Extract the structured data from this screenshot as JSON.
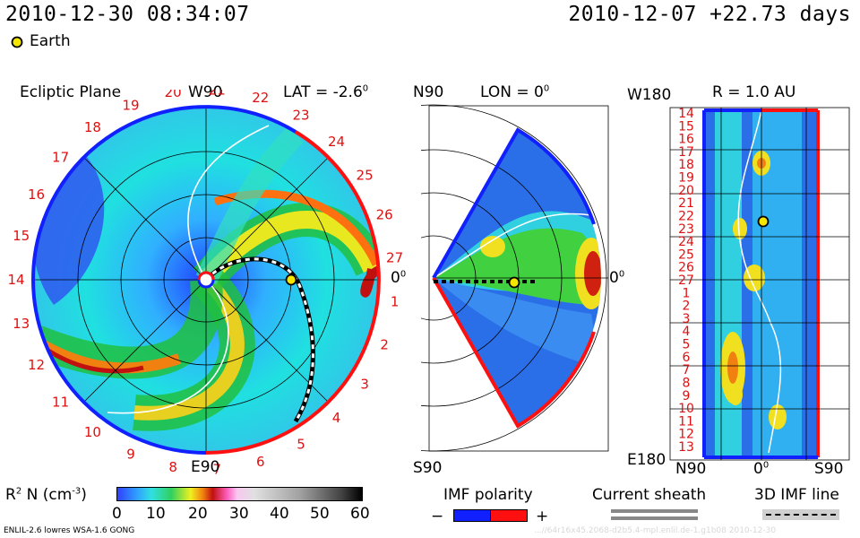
{
  "header": {
    "datetime": "2010-12-30 08:34:07",
    "reference": "2010-12-07 +22.73 days",
    "earth_legend": "Earth"
  },
  "ecliptic": {
    "title": "Ecliptic Plane",
    "top_label": "W90",
    "bottom_label": "E90",
    "right_label": "0",
    "lat_label": "LAT = -2.6",
    "lat_deg": "0",
    "right_deg": "0",
    "ring_numbers": [
      "1",
      "2",
      "3",
      "4",
      "5",
      "6",
      "7",
      "8",
      "9",
      "10",
      "11",
      "12",
      "13",
      "14",
      "15",
      "16",
      "17",
      "18",
      "19",
      "20",
      "21",
      "22",
      "23",
      "24",
      "25",
      "26",
      "27"
    ]
  },
  "meridional": {
    "top_label": "N90",
    "bottom_label": "S90",
    "lon_label": "LON = 0",
    "lon_deg": "0",
    "right_label": "0",
    "right_deg": "0"
  },
  "radial": {
    "title": "R = 1.0 AU",
    "top_left": "W180",
    "bottom_left": "E180",
    "bottom_labels": [
      "N90",
      "0",
      "S90"
    ],
    "bottom_deg": "0",
    "rotation_numbers": [
      "14",
      "15",
      "16",
      "17",
      "18",
      "19",
      "20",
      "21",
      "22",
      "23",
      "24",
      "25",
      "26",
      "27",
      "1",
      "2",
      "3",
      "4",
      "5",
      "6",
      "7",
      "8",
      "9",
      "10",
      "11",
      "12",
      "13"
    ]
  },
  "colorbar": {
    "label_prefix": "R",
    "label_sup": "2",
    "label_mid": " N (cm",
    "label_unit_sup": "-3",
    "label_suffix": ")",
    "ticks": [
      "0",
      "10",
      "20",
      "30",
      "40",
      "50",
      "60"
    ]
  },
  "legend": {
    "imf_polarity": "IMF polarity",
    "minus": "−",
    "plus": "+",
    "current_sheath": "Current sheath",
    "imf_line": "3D IMF line"
  },
  "footer": {
    "model_info": "ENLIL-2.6 lowres WSA-1.6 GONG",
    "run_id": "...//64r16x45.2068-d2b5.4-mpl.enlil.de-1.g1b08 2010-12-30"
  },
  "colors": {
    "polarity_negative": "#1020ff",
    "polarity_positive": "#ff1010",
    "earth": "#f5e600",
    "number_red": "#e01010"
  }
}
